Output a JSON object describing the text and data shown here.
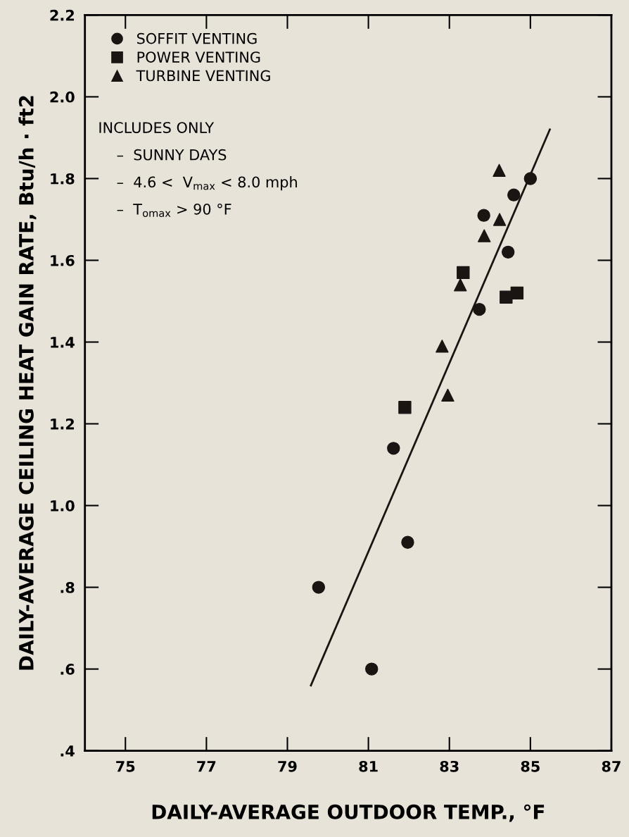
{
  "chart_data": {
    "type": "scatter",
    "xlabel": "DAILY-AVERAGE OUTDOOR TEMP., °F",
    "ylabel": "DAILY-AVERAGE CEILING HEAT GAIN RATE, Btu/h · ft2",
    "series": [
      {
        "name": "SOFFIT VENTING",
        "color": "#1a1412",
        "marker": "circle",
        "x": [
          85.0,
          84.59,
          83.85,
          84.45,
          83.74,
          81.62,
          81.97,
          79.77,
          81.08
        ],
        "values": [
          1.8,
          1.76,
          1.71,
          1.62,
          1.48,
          1.14,
          0.91,
          0.8,
          0.6
        ]
      },
      {
        "name": "POWER VENTING",
        "color": "#1a1412",
        "marker": "square",
        "x": [
          83.34,
          84.4,
          84.67,
          81.9
        ],
        "values": [
          1.57,
          1.51,
          1.52,
          1.24
        ]
      },
      {
        "name": "TURBINE VENTING",
        "color": "#1a1412",
        "marker": "triangle",
        "x": [
          84.23,
          84.24,
          83.86,
          83.27,
          82.82,
          82.96
        ],
        "values": [
          1.82,
          1.7,
          1.66,
          1.54,
          1.39,
          1.27
        ]
      },
      {
        "type": "line",
        "color": "#1a1412",
        "marker": "none",
        "line_style": "solid",
        "x": [
          79.58,
          85.48
        ],
        "values": [
          0.56,
          1.92
        ]
      }
    ],
    "xlim": [
      74,
      87
    ],
    "ylim": [
      0.4,
      2.2
    ],
    "xticks": [
      75,
      77,
      79,
      81,
      83,
      85,
      87
    ],
    "yticks": [
      {
        "value": 0.4,
        "label": ".4"
      },
      {
        "value": 0.6,
        "label": ".6"
      },
      {
        "value": 0.8,
        "label": ".8"
      },
      {
        "value": 1.0,
        "label": "1.0"
      },
      1.2,
      1.4,
      1.6,
      1.8,
      {
        "value": 2.0,
        "label": "2.0"
      },
      2.2
    ],
    "annotations": [
      "INCLUDES ONLY",
      "–  SUNNY DAYS",
      "–  4.6 <  V$_{max}$ < 8.0 mph",
      "–  T$_{omax}$ > 90 °F"
    ],
    "legend": "top left",
    "grid": false
  }
}
